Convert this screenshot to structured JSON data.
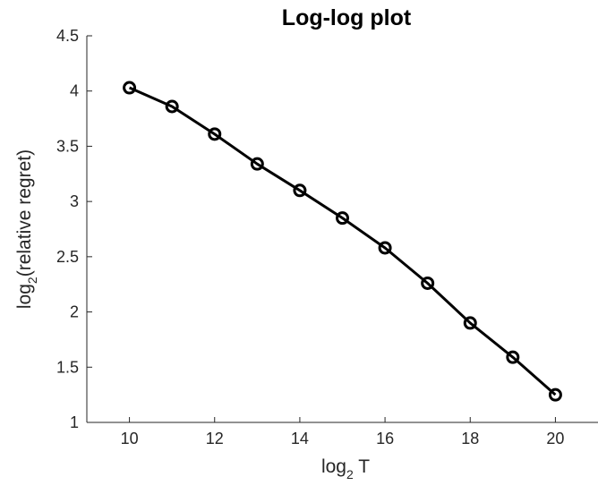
{
  "chart_data": {
    "type": "line",
    "title": "Log-log plot",
    "xlabel": {
      "base": "log",
      "sub": "2",
      "rest": " T"
    },
    "ylabel": {
      "base": "log",
      "sub": "2",
      "rest": "(relative regret)"
    },
    "xlim": [
      9,
      21
    ],
    "ylim": [
      1,
      4.5
    ],
    "xticks": [
      10,
      12,
      14,
      16,
      18,
      20
    ],
    "yticks": [
      1,
      1.5,
      2,
      2.5,
      3,
      3.5,
      4,
      4.5
    ],
    "xtick_labels": [
      "10",
      "12",
      "14",
      "16",
      "18",
      "20"
    ],
    "ytick_labels": [
      "1",
      "1.5",
      "2",
      "2.5",
      "3",
      "3.5",
      "4",
      "4.5"
    ],
    "grid": false,
    "series": [
      {
        "x": [
          10,
          11,
          12,
          13,
          14,
          15,
          16,
          17,
          18,
          19,
          20
        ],
        "y": [
          4.03,
          3.86,
          3.61,
          3.34,
          3.1,
          2.85,
          2.58,
          2.26,
          1.9,
          1.59,
          1.25
        ],
        "color": "#000000",
        "marker": "circle"
      }
    ]
  }
}
